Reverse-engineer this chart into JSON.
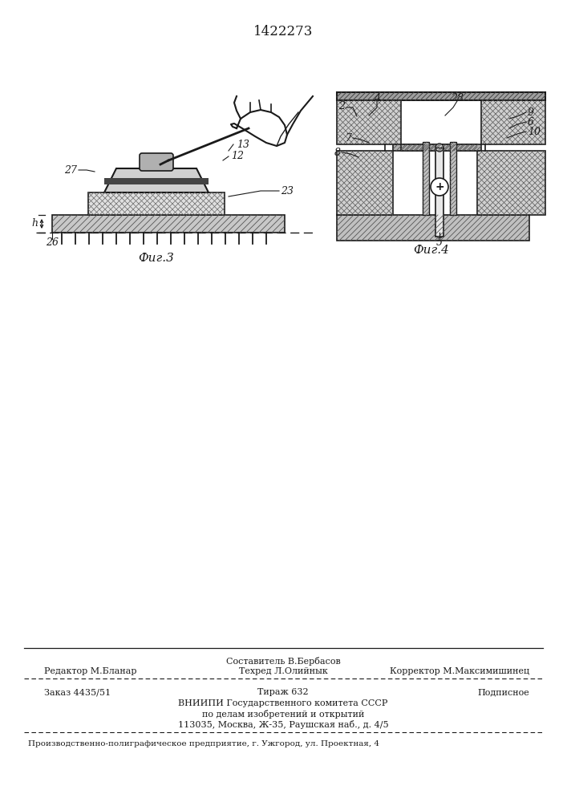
{
  "patent_number": "1422273",
  "fig3_caption": "Фиг.3",
  "fig4_caption": "Фиг.4",
  "footer_sestavitel": "Составитель В.Бербасов",
  "footer_redaktor_label": "Редактор М.Бланар",
  "footer_tehred_label": "Техред Л.Олийнык",
  "footer_korrektor_label": "Корректор М.Максимишинец",
  "footer_zakaz": "Заказ 4435/51",
  "footer_tirazh": "Тираж 632",
  "footer_podpisnoe": "Подписное",
  "footer_vniipи1": "ВНИИПИ Государственного комитета СССР",
  "footer_vniipи2": "по делам изобретений и открытий",
  "footer_vniipи3": "113035, Москва, Ж-35, Раушская наб., д. 4/5",
  "footer_uggorod": "Производственно-полиграфическое предприятие, г. Ужгород, ул. Проектная, 4",
  "line_color": "#1a1a1a",
  "hatch_color": "#333333",
  "gray_light": "#d8d8d8",
  "gray_mid": "#b0b0b0",
  "gray_dark": "#888888",
  "white": "#ffffff"
}
